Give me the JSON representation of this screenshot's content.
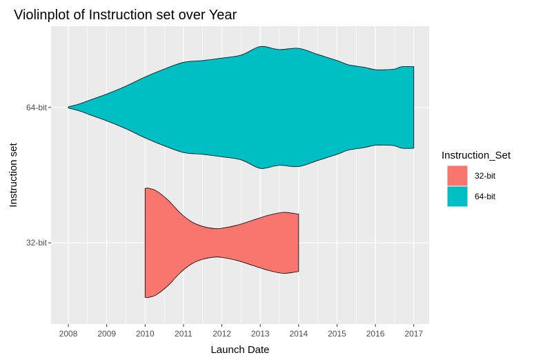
{
  "chart_data": {
    "type": "violin",
    "orientation": "horizontal",
    "title": "Violinplot of Instruction set over Year",
    "xlabel": "Launch Date",
    "ylabel": "Instruction set",
    "xlim": [
      2007.55,
      2017.4
    ],
    "x_ticks": [
      2008,
      2009,
      2010,
      2011,
      2012,
      2013,
      2014,
      2015,
      2016,
      2017
    ],
    "categories": [
      "32-bit",
      "64-bit"
    ],
    "legend": {
      "title": "Instruction_Set",
      "position": "right",
      "entries": [
        {
          "name": "32-bit",
          "color": "#F8766D"
        },
        {
          "name": "64-bit",
          "color": "#00BFC4"
        }
      ]
    },
    "grid": true,
    "series": [
      {
        "name": "32-bit",
        "color": "#F8766D",
        "density": [
          [
            2010.0,
            0.895
          ],
          [
            2010.1,
            0.895
          ],
          [
            2010.3,
            0.85
          ],
          [
            2010.6,
            0.7
          ],
          [
            2010.9,
            0.5
          ],
          [
            2011.2,
            0.35
          ],
          [
            2011.5,
            0.27
          ],
          [
            2011.8,
            0.235
          ],
          [
            2012.0,
            0.24
          ],
          [
            2012.4,
            0.29
          ],
          [
            2012.8,
            0.37
          ],
          [
            2013.2,
            0.45
          ],
          [
            2013.6,
            0.5
          ],
          [
            2013.9,
            0.48
          ],
          [
            2014.0,
            0.47
          ]
        ]
      },
      {
        "name": "64-bit",
        "color": "#00BFC4",
        "density": [
          [
            2008.0,
            0.01
          ],
          [
            2008.3,
            0.06
          ],
          [
            2008.6,
            0.13
          ],
          [
            2009.0,
            0.22
          ],
          [
            2009.5,
            0.35
          ],
          [
            2010.0,
            0.5
          ],
          [
            2010.5,
            0.63
          ],
          [
            2011.0,
            0.74
          ],
          [
            2011.5,
            0.77
          ],
          [
            2012.0,
            0.81
          ],
          [
            2012.5,
            0.86
          ],
          [
            2012.9,
            0.98
          ],
          [
            2013.1,
            1.0
          ],
          [
            2013.5,
            0.95
          ],
          [
            2014.0,
            0.97
          ],
          [
            2014.5,
            0.87
          ],
          [
            2015.0,
            0.77
          ],
          [
            2015.3,
            0.7
          ],
          [
            2015.7,
            0.66
          ],
          [
            2016.0,
            0.62
          ],
          [
            2016.3,
            0.62
          ],
          [
            2016.5,
            0.63
          ],
          [
            2016.7,
            0.67
          ],
          [
            2017.0,
            0.67
          ]
        ]
      }
    ]
  }
}
